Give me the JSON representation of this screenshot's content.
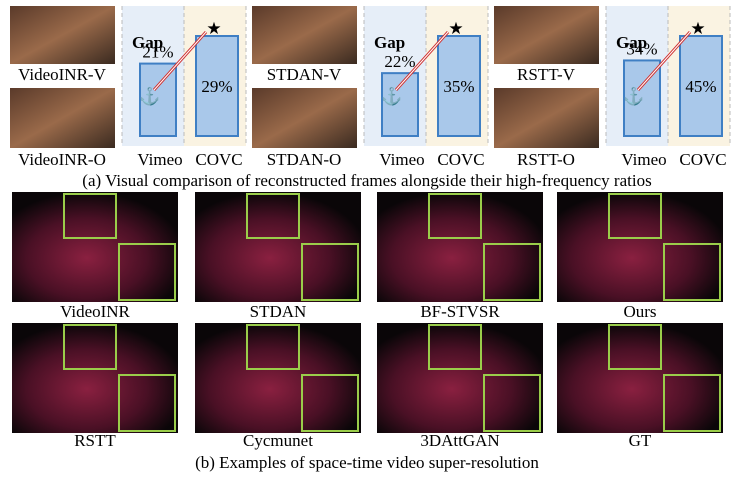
{
  "part_a": {
    "panels": [
      {
        "top_label": "VideoINR-V",
        "bottom_label": "VideoINR-O",
        "gap_label": "Gap",
        "bars": [
          {
            "name": "Vimeo",
            "value": 21,
            "label": "21%"
          },
          {
            "name": "COVC",
            "value": 29,
            "label": "29%"
          }
        ]
      },
      {
        "top_label": "STDAN-V",
        "bottom_label": "STDAN-O",
        "gap_label": "Gap",
        "bars": [
          {
            "name": "Vimeo",
            "value": 22,
            "label": "22%"
          },
          {
            "name": "COVC",
            "value": 35,
            "label": "35%"
          }
        ]
      },
      {
        "top_label": "RSTT-V",
        "bottom_label": "RSTT-O",
        "gap_label": "Gap",
        "bars": [
          {
            "name": "Vimeo",
            "value": 34,
            "label": "34%"
          },
          {
            "name": "COVC",
            "value": 45,
            "label": "45%"
          }
        ]
      }
    ],
    "caption": "(a) Visual comparison of reconstructed frames alongside their high-frequency ratios"
  },
  "part_b": {
    "images": [
      "VideoINR",
      "STDAN",
      "BF-STVSR",
      "Ours",
      "RSTT",
      "Cycmunet",
      "3DAttGAN",
      "GT"
    ],
    "caption": "(b) Examples of space-time video super-resolution"
  }
}
